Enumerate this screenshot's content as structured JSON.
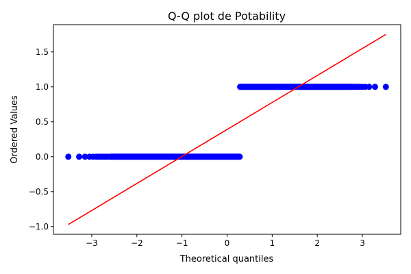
{
  "chart_data": {
    "type": "scatter",
    "title": "Q-Q plot de Potability",
    "xlabel": "Theoretical quantiles",
    "ylabel": "Ordered Values",
    "xlim": [
      -3.85,
      3.85
    ],
    "ylim": [
      -1.11,
      1.89
    ],
    "x_ticks": [
      -3,
      -2,
      -1,
      0,
      1,
      2,
      3
    ],
    "x_tick_labels": [
      "−3",
      "−2",
      "−1",
      "0",
      "1",
      "2",
      "3"
    ],
    "y_ticks": [
      -1.0,
      -0.5,
      0.0,
      0.5,
      1.0,
      1.5
    ],
    "y_tick_labels": [
      "−1.0",
      "−0.5",
      "0.0",
      "0.5",
      "1.0",
      "1.5"
    ],
    "grid": false,
    "series": [
      {
        "kind": "points",
        "color": "#0000ff",
        "groups": [
          {
            "y": 0.0,
            "x_dense_range": [
              -2.6,
              0.28
            ],
            "x_tail_points": [
              -3.52,
              -3.28,
              -3.15,
              -3.05,
              -2.97,
              -2.9,
              -2.84,
              -2.79,
              -2.74,
              -2.7,
              -2.66
            ]
          },
          {
            "y": 1.0,
            "x_dense_range": [
              0.29,
              2.75
            ],
            "x_tail_points": [
              2.78,
              2.83,
              2.88,
              2.93,
              2.99,
              3.06,
              3.15,
              3.28,
              3.52
            ]
          }
        ]
      },
      {
        "kind": "line",
        "color": "#ff0000",
        "x": [
          -3.52,
          3.52
        ],
        "y": [
          -0.97,
          1.75
        ]
      }
    ]
  }
}
